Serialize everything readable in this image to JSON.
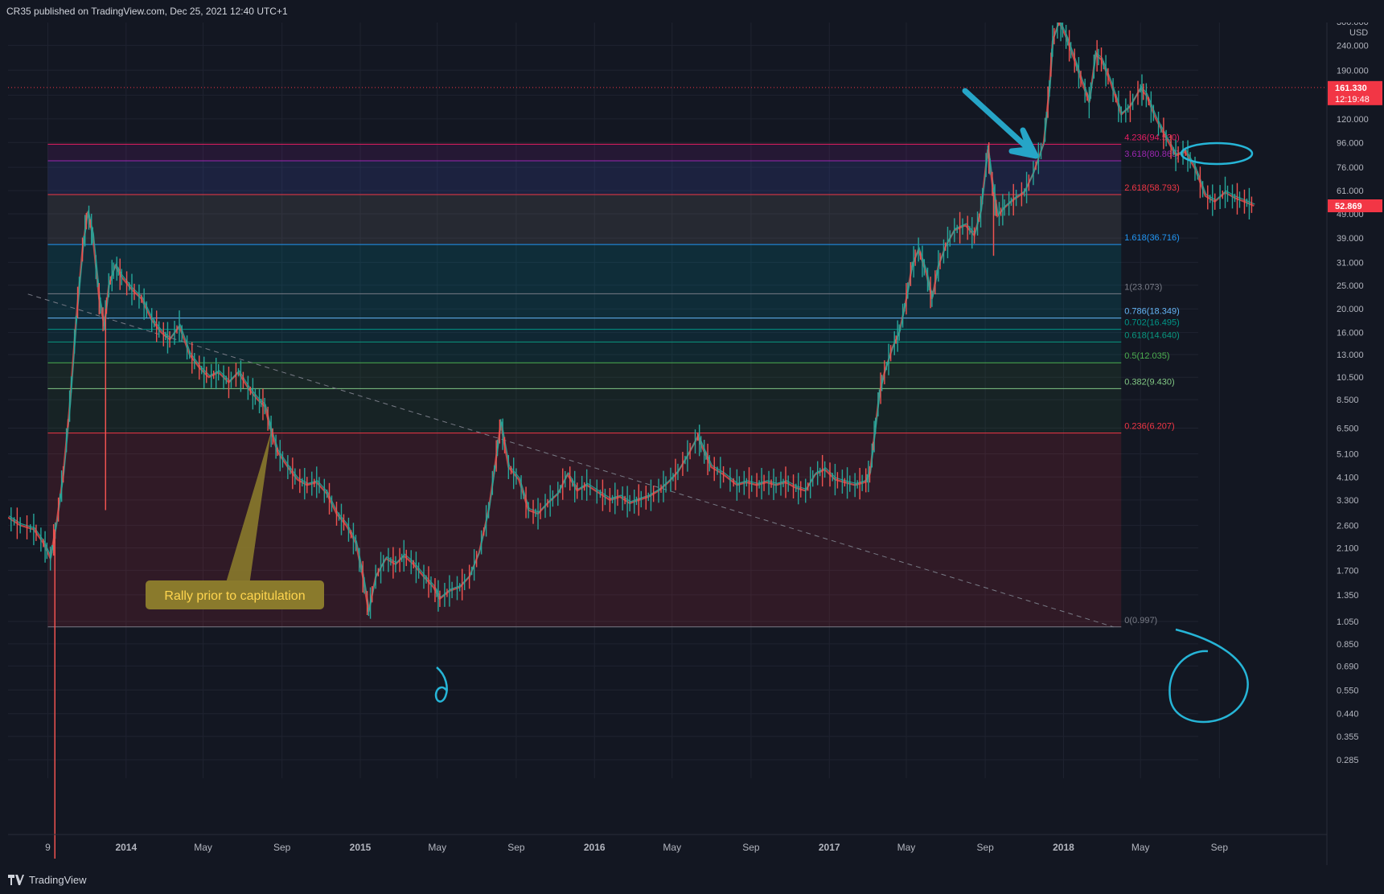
{
  "header": {
    "published": "CR35 published on TradingView.com, Dec 25, 2021 12:40 UTC+1"
  },
  "footer": {
    "brand": "TradingView"
  },
  "chart_data": {
    "type": "line",
    "scale": "log",
    "yunit": "USD",
    "ylim": [
      0.27,
      330
    ],
    "y_ticks": [
      "0.285",
      "0.355",
      "0.440",
      "0.550",
      "0.690",
      "0.850",
      "1.050",
      "1.350",
      "1.700",
      "2.100",
      "2.600",
      "3.300",
      "4.100",
      "5.100",
      "6.500",
      "8.500",
      "10.500",
      "13.000",
      "16.000",
      "20.000",
      "25.000",
      "31.000",
      "39.000",
      "49.000",
      "61.000",
      "76.000",
      "96.000",
      "120.000",
      "150.000",
      "190.000",
      "240.000",
      "300.000"
    ],
    "y_tick_values": [
      0.285,
      0.355,
      0.44,
      0.55,
      0.69,
      0.85,
      1.05,
      1.35,
      1.7,
      2.1,
      2.6,
      3.3,
      4.1,
      5.1,
      6.5,
      8.5,
      10.5,
      13,
      16,
      20,
      25,
      31,
      39,
      49,
      61,
      76,
      96,
      120,
      150,
      190,
      240,
      300
    ],
    "x_ticks": [
      "9",
      "2014",
      "May",
      "Sep",
      "2015",
      "May",
      "Sep",
      "2016",
      "May",
      "Sep",
      "2017",
      "May",
      "Sep",
      "2018",
      "May",
      "Sep"
    ],
    "x_tick_dates": [
      "2013-09-01",
      "2014-01-01",
      "2014-05-01",
      "2014-09-01",
      "2015-01-01",
      "2015-05-01",
      "2015-09-01",
      "2016-01-01",
      "2016-05-01",
      "2016-09-01",
      "2017-01-01",
      "2017-05-01",
      "2017-09-01",
      "2018-01-01",
      "2018-05-01",
      "2018-09-01"
    ],
    "x_range": [
      "2013-07-01",
      "2018-11-01"
    ],
    "price_tags": [
      {
        "value": 161.33,
        "label": "161.330",
        "sub": "12:19:48",
        "color": "#f23645"
      },
      {
        "value": 52.869,
        "label": "52.869",
        "color": "#f23645"
      }
    ],
    "fib_start": "2013-09-01",
    "fib_end": "2018-04-01",
    "fib_levels": [
      {
        "ratio": "0",
        "value": 0.997,
        "label": "0(0.997)",
        "color": "#787b86",
        "fill": "#f2364522"
      },
      {
        "ratio": "0.236",
        "value": 6.207,
        "label": "0.236(6.207)",
        "color": "#f23645",
        "fill": "#4caf5014"
      },
      {
        "ratio": "0.382",
        "value": 9.43,
        "label": "0.382(9.430)",
        "color": "#81c784",
        "fill": "#4caf501a"
      },
      {
        "ratio": "0.5",
        "value": 12.035,
        "label": "0.5(12.035)",
        "color": "#4caf50",
        "fill": "#00968822"
      },
      {
        "ratio": "0.618",
        "value": 14.64,
        "label": "0.618(14.640)",
        "color": "#089981",
        "fill": "#0097a722"
      },
      {
        "ratio": "0.702",
        "value": 16.495,
        "label": "0.702(16.495)",
        "color": "#009688",
        "fill": "#0097a722"
      },
      {
        "ratio": "0.786",
        "value": 18.349,
        "label": "0.786(18.349)",
        "color": "#64b5f6",
        "fill": "#0097a72a"
      },
      {
        "ratio": "1",
        "value": 23.073,
        "label": "1(23.073)",
        "color": "#787b86",
        "fill": "#0097a72e"
      },
      {
        "ratio": "1.618",
        "value": 36.716,
        "label": "1.618(36.716)",
        "color": "#2196f3",
        "fill": "#78787830"
      },
      {
        "ratio": "2.618",
        "value": 58.793,
        "label": "2.618(58.793)",
        "color": "#f23645",
        "fill": "#3f51b533"
      },
      {
        "ratio": "3.618",
        "value": 80.865,
        "label": "3.618(80.865)",
        "color": "#9c27b0",
        "fill": "#9c27b022"
      },
      {
        "ratio": "4.236",
        "value": 94.53,
        "label": "4.236(94.530)",
        "color": "#e91e63"
      }
    ],
    "trendline": {
      "from": {
        "date": "2013-08-01",
        "value": 23
      },
      "to": {
        "date": "2018-03-20",
        "value": 0.997
      }
    },
    "annotation": {
      "text": "Rally prior to capitulation",
      "target": {
        "date": "2014-08-15",
        "value": 6.3
      }
    },
    "price_path": [
      [
        "2013-07-01",
        2.8
      ],
      [
        "2013-07-20",
        2.6
      ],
      [
        "2013-08-10",
        2.5
      ],
      [
        "2013-08-25",
        2.2
      ],
      [
        "2013-09-05",
        1.9
      ],
      [
        "2013-09-15",
        2.7
      ],
      [
        "2013-09-25",
        4.2
      ],
      [
        "2013-10-05",
        8
      ],
      [
        "2013-10-15",
        18
      ],
      [
        "2013-10-25",
        35
      ],
      [
        "2013-11-02",
        50
      ],
      [
        "2013-11-10",
        40
      ],
      [
        "2013-11-20",
        22
      ],
      [
        "2013-11-28",
        17
      ],
      [
        "2013-12-05",
        25
      ],
      [
        "2013-12-15",
        30
      ],
      [
        "2013-12-25",
        27
      ],
      [
        "2014-01-10",
        24
      ],
      [
        "2014-01-25",
        22
      ],
      [
        "2014-02-10",
        18
      ],
      [
        "2014-02-25",
        16
      ],
      [
        "2014-03-10",
        15
      ],
      [
        "2014-03-25",
        17
      ],
      [
        "2014-04-10",
        13
      ],
      [
        "2014-04-25",
        11.5
      ],
      [
        "2014-05-10",
        10.5
      ],
      [
        "2014-05-25",
        11
      ],
      [
        "2014-06-10",
        10
      ],
      [
        "2014-06-25",
        11
      ],
      [
        "2014-07-10",
        9.5
      ],
      [
        "2014-07-25",
        8.5
      ],
      [
        "2014-08-05",
        8
      ],
      [
        "2014-08-15",
        6.3
      ],
      [
        "2014-08-25",
        5.2
      ],
      [
        "2014-09-10",
        4.5
      ],
      [
        "2014-09-25",
        4.0
      ],
      [
        "2014-10-10",
        3.8
      ],
      [
        "2014-10-25",
        3.9
      ],
      [
        "2014-11-10",
        3.5
      ],
      [
        "2014-11-25",
        2.9
      ],
      [
        "2014-12-10",
        2.6
      ],
      [
        "2014-12-25",
        2.2
      ],
      [
        "2015-01-05",
        1.6
      ],
      [
        "2015-01-14",
        1.15
      ],
      [
        "2015-01-25",
        1.6
      ],
      [
        "2015-02-10",
        1.9
      ],
      [
        "2015-02-25",
        1.8
      ],
      [
        "2015-03-10",
        1.95
      ],
      [
        "2015-03-25",
        1.8
      ],
      [
        "2015-04-10",
        1.6
      ],
      [
        "2015-04-25",
        1.45
      ],
      [
        "2015-05-05",
        1.3
      ],
      [
        "2015-05-20",
        1.4
      ],
      [
        "2015-06-05",
        1.45
      ],
      [
        "2015-06-20",
        1.6
      ],
      [
        "2015-07-05",
        2.0
      ],
      [
        "2015-07-20",
        3.0
      ],
      [
        "2015-08-01",
        5.0
      ],
      [
        "2015-08-08",
        6.8
      ],
      [
        "2015-08-20",
        4.5
      ],
      [
        "2015-09-05",
        4.0
      ],
      [
        "2015-09-20",
        3.0
      ],
      [
        "2015-10-05",
        2.9
      ],
      [
        "2015-10-20",
        3.2
      ],
      [
        "2015-11-05",
        3.5
      ],
      [
        "2015-11-20",
        4.2
      ],
      [
        "2015-12-05",
        3.6
      ],
      [
        "2015-12-20",
        3.8
      ],
      [
        "2016-01-10",
        3.5
      ],
      [
        "2016-01-25",
        3.3
      ],
      [
        "2016-02-10",
        3.4
      ],
      [
        "2016-02-25",
        3.2
      ],
      [
        "2016-03-10",
        3.3
      ],
      [
        "2016-03-25",
        3.4
      ],
      [
        "2016-04-10",
        3.6
      ],
      [
        "2016-04-25",
        3.9
      ],
      [
        "2016-05-10",
        4.3
      ],
      [
        "2016-05-25",
        5.0
      ],
      [
        "2016-06-10",
        6.0
      ],
      [
        "2016-06-20",
        5.2
      ],
      [
        "2016-07-01",
        4.5
      ],
      [
        "2016-07-20",
        4.2
      ],
      [
        "2016-08-10",
        3.8
      ],
      [
        "2016-08-25",
        3.9
      ],
      [
        "2016-09-10",
        3.8
      ],
      [
        "2016-09-25",
        3.9
      ],
      [
        "2016-10-10",
        3.8
      ],
      [
        "2016-10-25",
        3.9
      ],
      [
        "2016-11-10",
        3.7
      ],
      [
        "2016-11-25",
        3.6
      ],
      [
        "2016-12-10",
        4.2
      ],
      [
        "2016-12-25",
        4.4
      ],
      [
        "2017-01-10",
        4.0
      ],
      [
        "2017-01-25",
        3.9
      ],
      [
        "2017-02-10",
        3.8
      ],
      [
        "2017-02-25",
        3.9
      ],
      [
        "2017-03-05",
        4.2
      ],
      [
        "2017-03-12",
        6.0
      ],
      [
        "2017-03-20",
        9
      ],
      [
        "2017-03-28",
        11
      ],
      [
        "2017-04-10",
        14
      ],
      [
        "2017-04-20",
        16
      ],
      [
        "2017-05-01",
        22
      ],
      [
        "2017-05-10",
        30
      ],
      [
        "2017-05-20",
        35
      ],
      [
        "2017-06-01",
        28
      ],
      [
        "2017-06-10",
        22
      ],
      [
        "2017-06-20",
        30
      ],
      [
        "2017-07-01",
        36
      ],
      [
        "2017-07-15",
        42
      ],
      [
        "2017-08-01",
        44
      ],
      [
        "2017-08-15",
        40
      ],
      [
        "2017-08-25",
        50
      ],
      [
        "2017-09-05",
        90
      ],
      [
        "2017-09-12",
        65
      ],
      [
        "2017-09-20",
        48
      ],
      [
        "2017-10-01",
        52
      ],
      [
        "2017-10-15",
        56
      ],
      [
        "2017-11-01",
        60
      ],
      [
        "2017-11-15",
        72
      ],
      [
        "2017-12-01",
        95
      ],
      [
        "2017-12-10",
        160
      ],
      [
        "2017-12-15",
        250
      ],
      [
        "2017-12-25",
        300
      ],
      [
        "2018-01-05",
        260
      ],
      [
        "2018-01-15",
        220
      ],
      [
        "2018-01-28",
        175
      ],
      [
        "2018-02-10",
        140
      ],
      [
        "2018-02-20",
        220
      ],
      [
        "2018-03-01",
        210
      ],
      [
        "2018-03-15",
        170
      ],
      [
        "2018-04-01",
        125
      ],
      [
        "2018-04-15",
        135
      ],
      [
        "2018-05-01",
        160
      ],
      [
        "2018-05-10",
        150
      ],
      [
        "2018-05-25",
        120
      ],
      [
        "2018-06-10",
        100
      ],
      [
        "2018-06-25",
        85
      ],
      [
        "2018-07-10",
        88
      ],
      [
        "2018-07-25",
        75
      ],
      [
        "2018-08-10",
        58
      ],
      [
        "2018-08-25",
        55
      ],
      [
        "2018-09-10",
        60
      ],
      [
        "2018-09-25",
        57
      ],
      [
        "2018-10-10",
        55
      ],
      [
        "2018-10-25",
        52.869
      ]
    ]
  }
}
